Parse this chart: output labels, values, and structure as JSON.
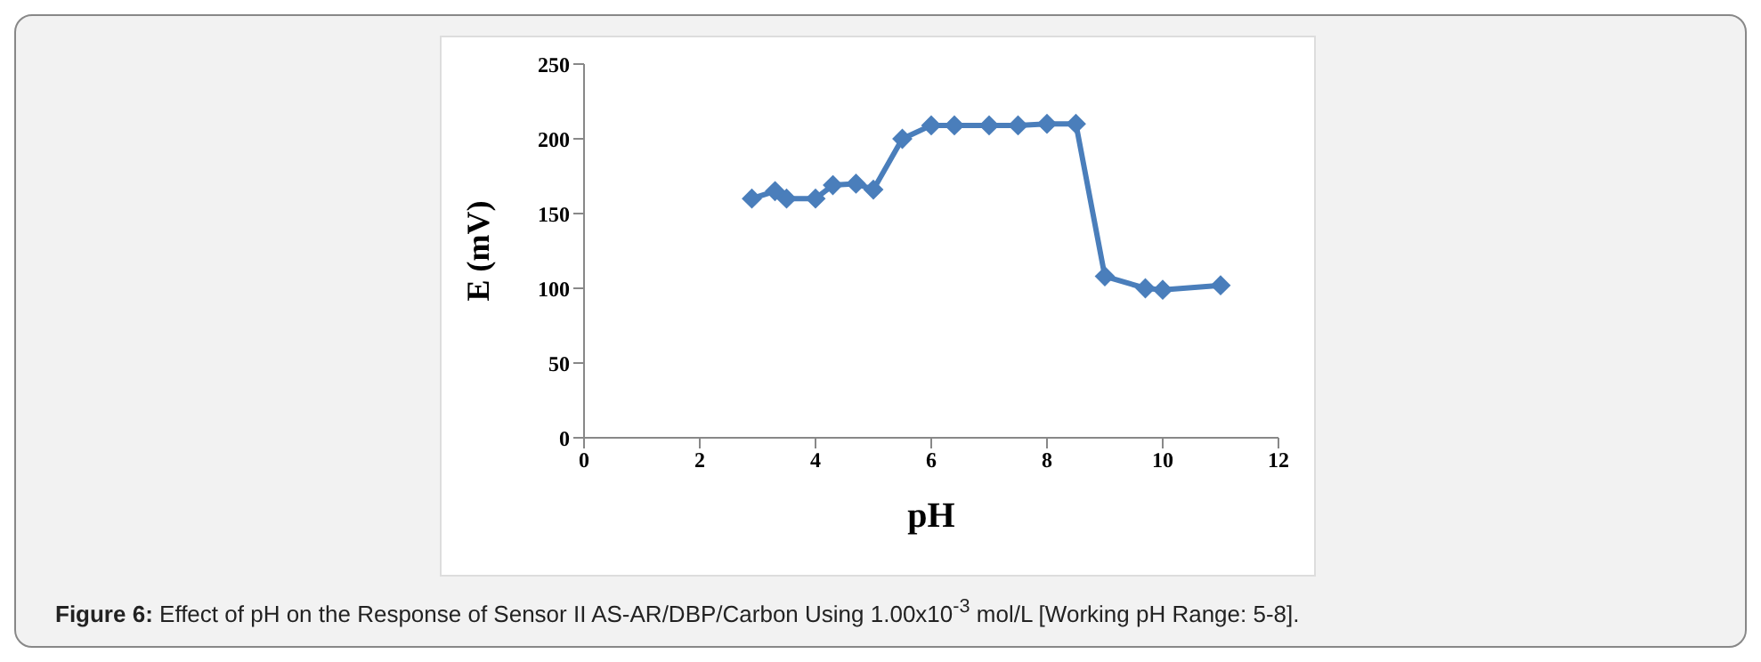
{
  "chart_data": {
    "type": "line",
    "xlabel": "pH",
    "ylabel": "E (mV)",
    "x": [
      2.9,
      3.3,
      3.5,
      4.0,
      4.3,
      4.7,
      5.0,
      5.5,
      6.0,
      6.4,
      7.0,
      7.5,
      8.0,
      8.5,
      9.0,
      9.7,
      10.0,
      11.0
    ],
    "series": [
      {
        "color": "#4a7ebb",
        "values": [
          160,
          165,
          160,
          160,
          169,
          170,
          166,
          200,
          209,
          209,
          209,
          209,
          210,
          210,
          108,
          100,
          99,
          102
        ]
      }
    ],
    "xlim": [
      0,
      12
    ],
    "xticks": [
      0,
      2,
      4,
      6,
      8,
      10,
      12
    ],
    "ylim": [
      0,
      250
    ],
    "yticks": [
      0,
      50,
      100,
      150,
      200,
      250
    ],
    "marker": "diamond",
    "line_style": "solid",
    "grid": false,
    "legend": false,
    "annotations": [
      "Figure 6: Effect of pH on the Response of Sensor II AS-AR/DBP/Carbon Using 1.00x10$^{-3}$ mol/L [Working pH Range: 5-8]."
    ]
  }
}
